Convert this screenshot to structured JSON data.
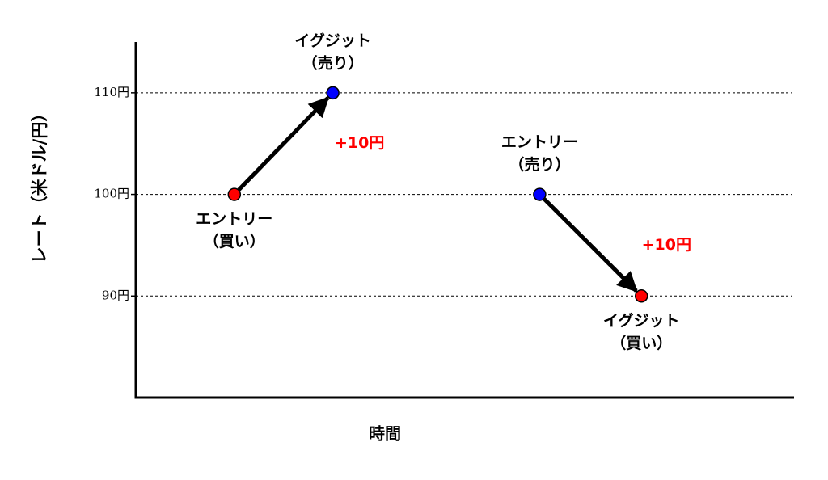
{
  "chart_data": {
    "type": "trade-arrows",
    "y_label": "レート（米ドル/円）",
    "x_label": "時間",
    "ylim": [
      80,
      115
    ],
    "xlim": [
      0,
      100
    ],
    "yticks": [
      {
        "value": 90,
        "label": "90円"
      },
      {
        "value": 100,
        "label": "100円"
      },
      {
        "value": 110,
        "label": "110円"
      }
    ],
    "grid": true,
    "trades": [
      {
        "points": [
          {
            "x": 15,
            "y": 100,
            "color": "#ff0000",
            "label": [
              "エントリー",
              "（買い）"
            ]
          },
          {
            "x": 30,
            "y": 110,
            "color": "#0000ff",
            "label": [
              "イグジット",
              "（売り）"
            ]
          }
        ],
        "gain_label": "+10円"
      },
      {
        "points": [
          {
            "x": 61.5,
            "y": 100,
            "color": "#0000ff",
            "label": [
              "エントリー",
              "（売り）"
            ]
          },
          {
            "x": 77,
            "y": 90,
            "color": "#ff0000",
            "label": [
              "イグジット",
              "（買い）"
            ]
          }
        ],
        "gain_label": "+10円"
      }
    ],
    "gain_color": "#ff0000"
  }
}
